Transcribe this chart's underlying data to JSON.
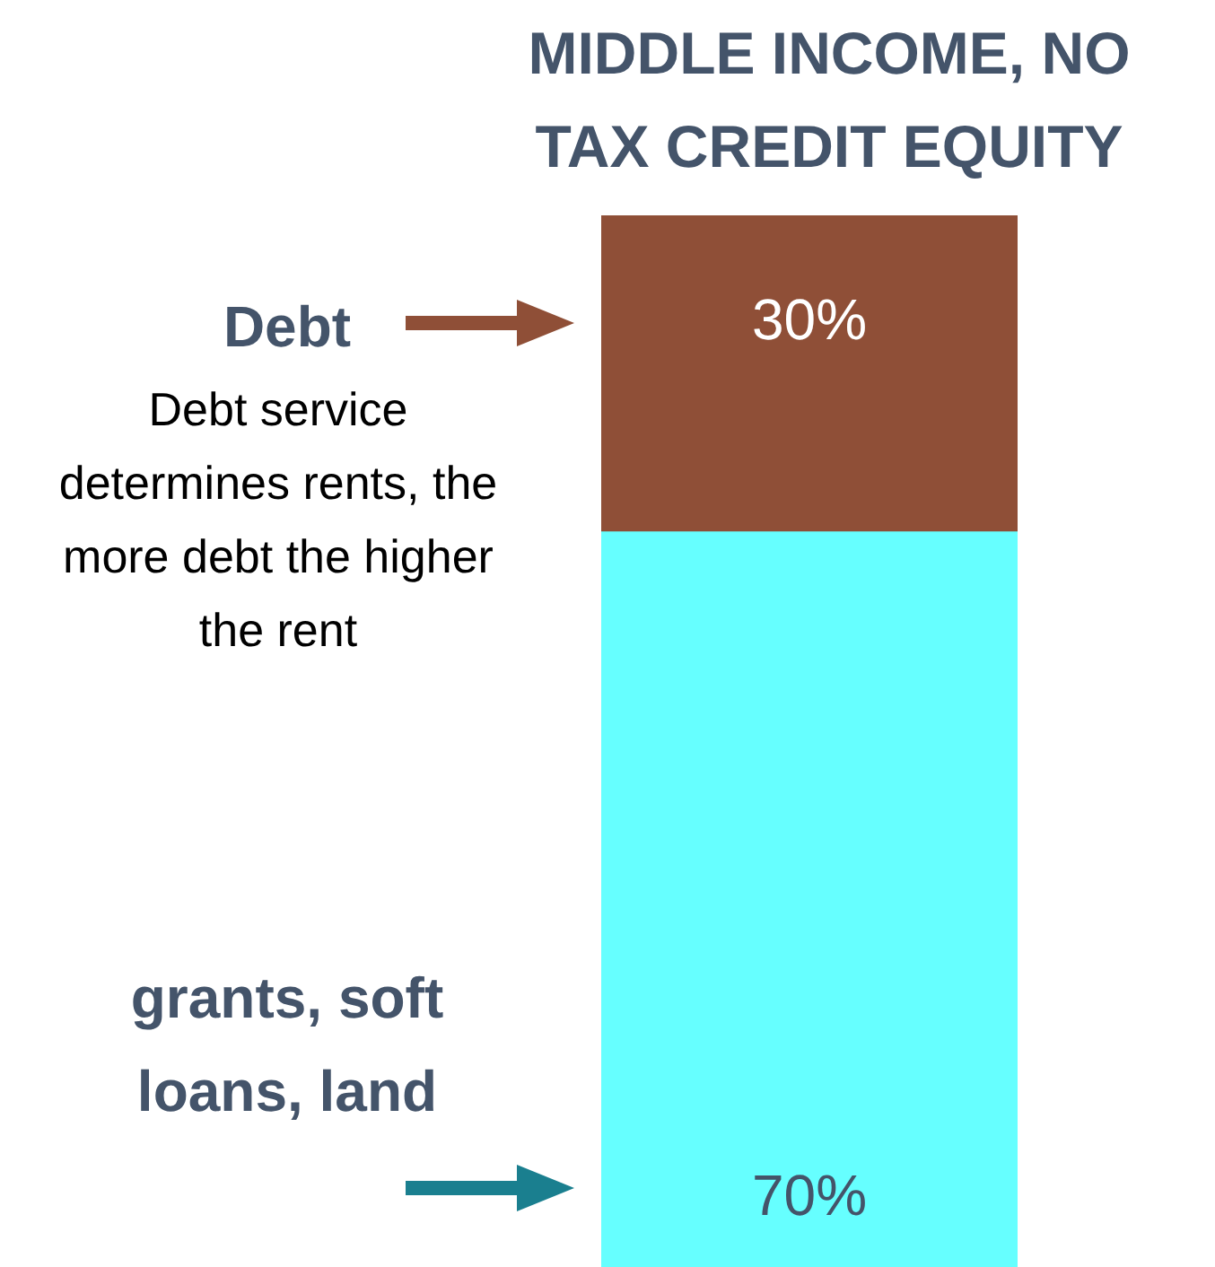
{
  "chart_data": {
    "type": "bar",
    "title": "MIDDLE INCOME, NO TAX CREDIT EQUITY",
    "categories": [
      null
    ],
    "stacked": true,
    "series": [
      {
        "name": "grants, soft loans, land",
        "color": "#66ffff",
        "values": [
          70
        ],
        "value_labels": [
          "70%"
        ]
      },
      {
        "name": "Debt",
        "color": "#8f4f37",
        "values": [
          30
        ],
        "value_labels": [
          "30%"
        ]
      }
    ],
    "annotations": [
      "Debt service determines rents, the more debt the higher the rent"
    ]
  }
}
